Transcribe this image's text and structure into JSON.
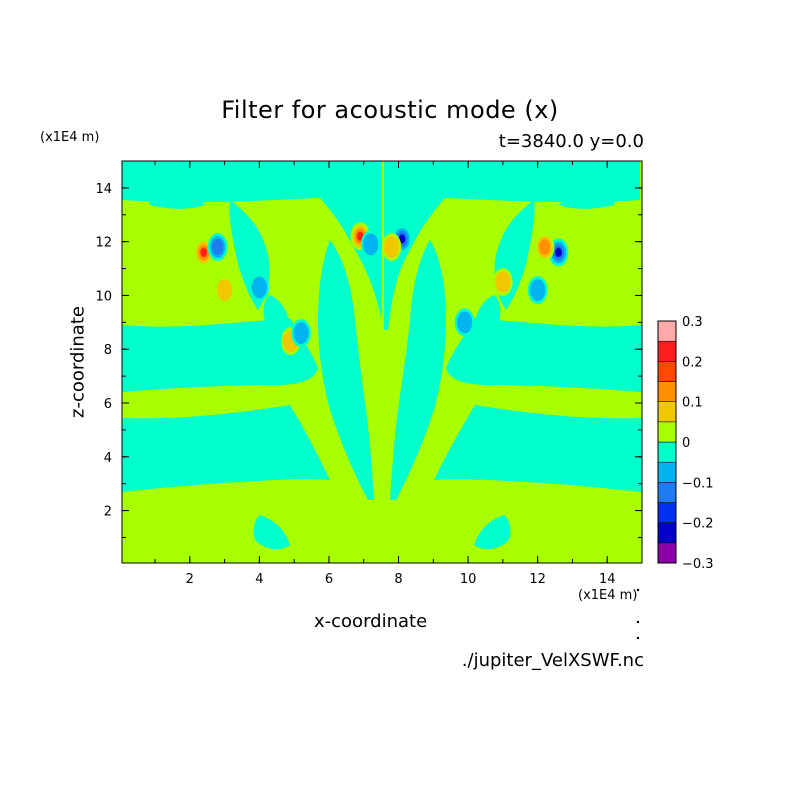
{
  "chart_data": {
    "type": "heatmap",
    "title": "Filter for acoustic mode (x)",
    "subtitle": "t=3840.0 y=0.0",
    "xlabel": "x-coordinate",
    "ylabel": "z-coordinate",
    "x_unit": "(x1E4 m)",
    "y_unit": "(x1E4 m)",
    "xlim": [
      0.05,
      15.0
    ],
    "ylim": [
      0.05,
      15.0
    ],
    "xticks": [
      "2",
      "4",
      "6",
      "8",
      "10",
      "12",
      "14"
    ],
    "xtick_values": [
      2,
      4,
      6,
      8,
      10,
      12,
      14
    ],
    "yticks": [
      "2",
      "4",
      "6",
      "8",
      "10",
      "12",
      "14"
    ],
    "ytick_values": [
      2,
      4,
      6,
      8,
      10,
      12,
      14
    ],
    "colorbar": {
      "levels": [
        -0.3,
        -0.25,
        -0.2,
        -0.15,
        -0.1,
        -0.05,
        0,
        0.05,
        0.1,
        0.15,
        0.2,
        0.25,
        0.3
      ],
      "labels": [
        "0.3",
        "0.2",
        "0.1",
        "0",
        "−0.1",
        "−0.2",
        "−0.3"
      ],
      "label_values": [
        0.3,
        0.2,
        0.1,
        0,
        -0.1,
        -0.2,
        -0.3
      ],
      "colors": [
        "#8c00a8",
        "#0000c8",
        "#0030f0",
        "#1e7cf0",
        "#00b4f0",
        "#00ffcc",
        "#a8ff00",
        "#f0c800",
        "#ff9000",
        "#ff4800",
        "#ff1e1e",
        "#ffaaaa"
      ]
    },
    "features": [
      {
        "x": 2.4,
        "z": 11.6,
        "value": 0.25
      },
      {
        "x": 2.8,
        "z": 11.8,
        "value": -0.15
      },
      {
        "x": 3.0,
        "z": 10.2,
        "value": 0.1
      },
      {
        "x": 6.9,
        "z": 12.2,
        "value": 0.25
      },
      {
        "x": 7.2,
        "z": 11.9,
        "value": -0.1
      },
      {
        "x": 8.1,
        "z": 12.1,
        "value": -0.25
      },
      {
        "x": 7.8,
        "z": 11.8,
        "value": 0.1
      },
      {
        "x": 12.6,
        "z": 11.6,
        "value": -0.25
      },
      {
        "x": 12.2,
        "z": 11.8,
        "value": 0.15
      },
      {
        "x": 12.0,
        "z": 10.2,
        "value": -0.1
      },
      {
        "x": 4.0,
        "z": 10.3,
        "value": -0.1
      },
      {
        "x": 11.0,
        "z": 10.5,
        "value": 0.1
      },
      {
        "x": 4.9,
        "z": 8.3,
        "value": 0.1
      },
      {
        "x": 9.9,
        "z": 9.0,
        "value": -0.1
      },
      {
        "x": 5.2,
        "z": 8.6,
        "value": -0.1
      }
    ]
  },
  "footer": {
    "source": "./jupiter_VelXSWF.nc"
  }
}
